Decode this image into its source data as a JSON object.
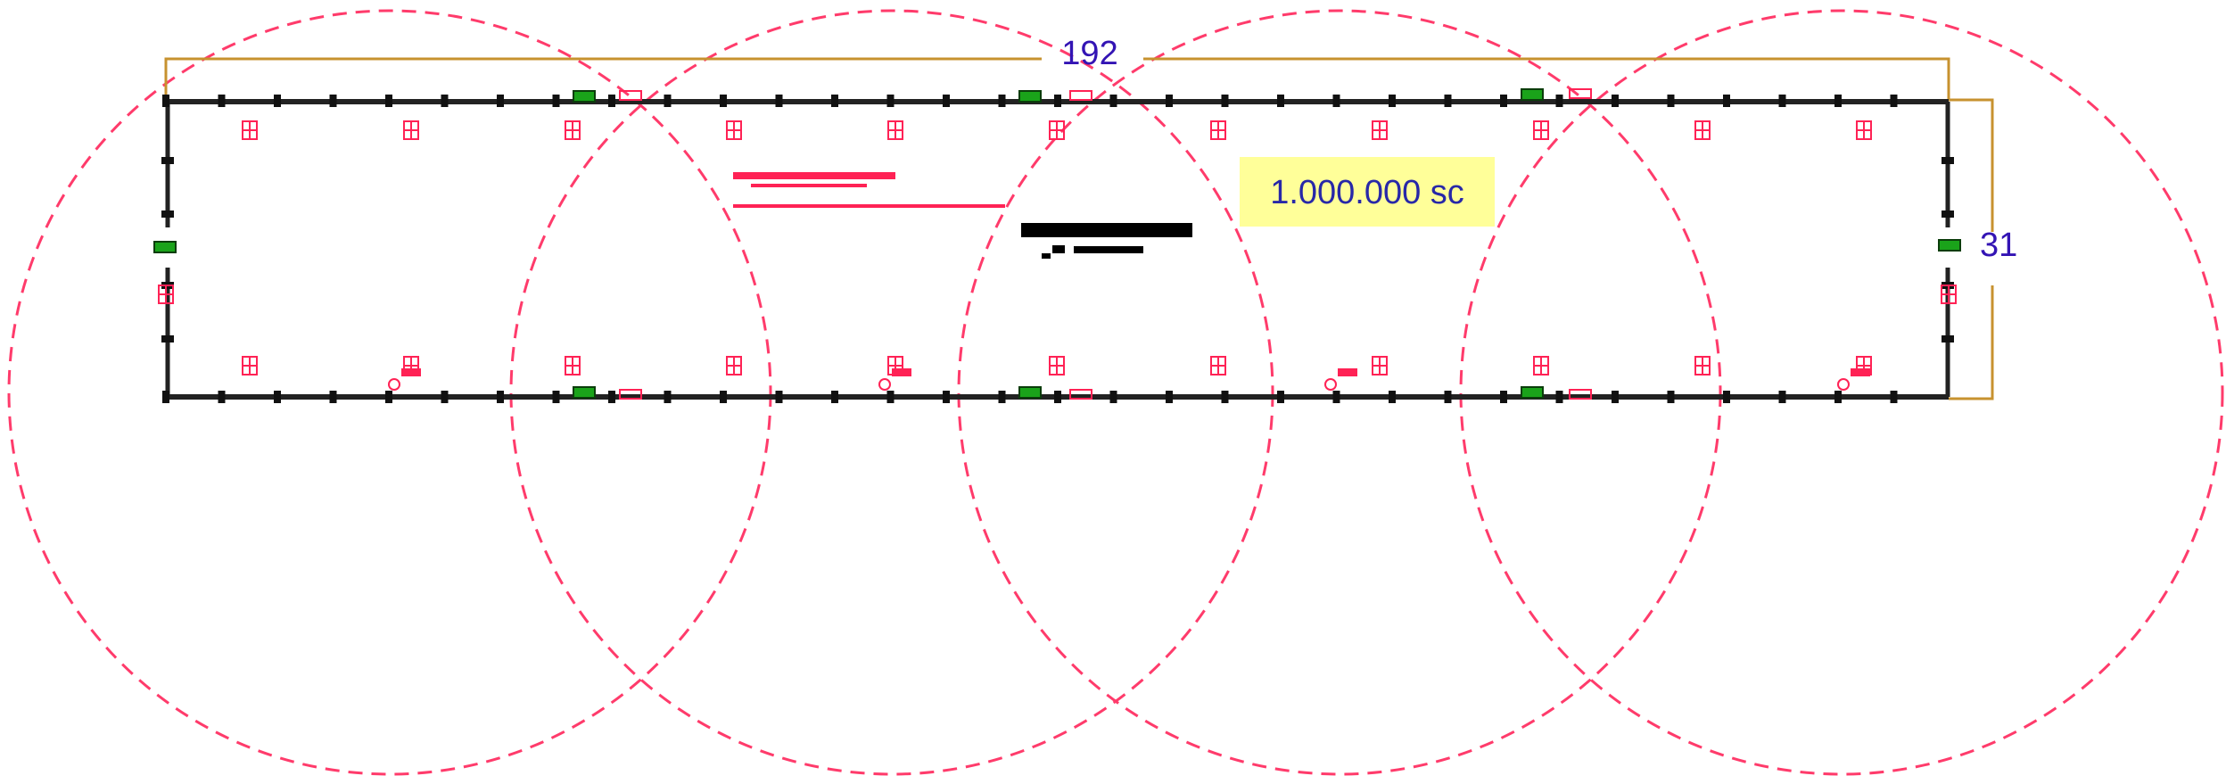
{
  "dimensions": {
    "width_label": "192",
    "height_label": "31"
  },
  "note": {
    "label": "1.000.000 sc",
    "background": "#ffff99"
  },
  "colors": {
    "coverage_circle": "#ff3b6b",
    "dimension_line": "#c7922f",
    "dimension_text": "#3314b4",
    "building_outline": "#222222",
    "device_marker": "#ff2255",
    "exit_marker": "#1aa31a"
  },
  "icons": {
    "device": "detector-icon",
    "exit": "exit-sign-icon"
  }
}
